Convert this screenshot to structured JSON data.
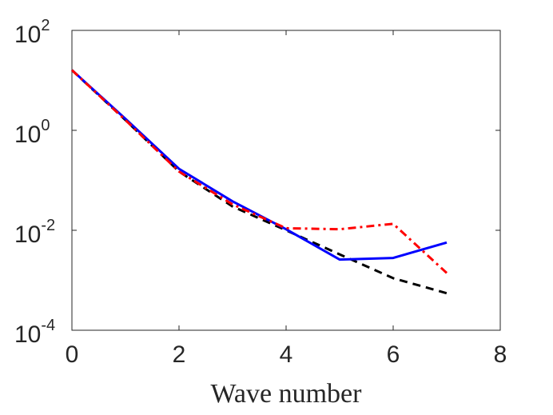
{
  "chart_data": {
    "type": "line",
    "title": "",
    "xlabel": "Wave number",
    "ylabel": "",
    "xlim": [
      0,
      8
    ],
    "ylim": [
      0.0001,
      100
    ],
    "yscale": "log",
    "grid": false,
    "x_ticks": [
      0,
      2,
      4,
      6,
      8
    ],
    "y_ticks": [
      {
        "value": 100,
        "base": "10",
        "exp": "2"
      },
      {
        "value": 1,
        "base": "10",
        "exp": "0"
      },
      {
        "value": 0.01,
        "base": "10",
        "exp": "-2"
      },
      {
        "value": 0.0001,
        "base": "10",
        "exp": "-4"
      }
    ],
    "series": [
      {
        "name": "black dashed",
        "color": "#000000",
        "style": "dashed",
        "x": [
          0,
          1,
          2,
          3,
          4,
          5,
          6,
          7
        ],
        "y": [
          16,
          1.6,
          0.15,
          0.03,
          0.01,
          0.0033,
          0.0011,
          0.00055
        ]
      },
      {
        "name": "blue solid",
        "color": "#0000ff",
        "style": "solid",
        "x": [
          0,
          1,
          2,
          3,
          4,
          5,
          6,
          7
        ],
        "y": [
          16,
          1.7,
          0.17,
          0.038,
          0.0105,
          0.0026,
          0.0028,
          0.0057
        ]
      },
      {
        "name": "red dash-dot",
        "color": "#ff0000",
        "style": "dashdot",
        "x": [
          0,
          1,
          2,
          3,
          4,
          5,
          6,
          7
        ],
        "y": [
          16,
          1.6,
          0.15,
          0.033,
          0.011,
          0.0105,
          0.0135,
          0.0014
        ]
      }
    ]
  }
}
